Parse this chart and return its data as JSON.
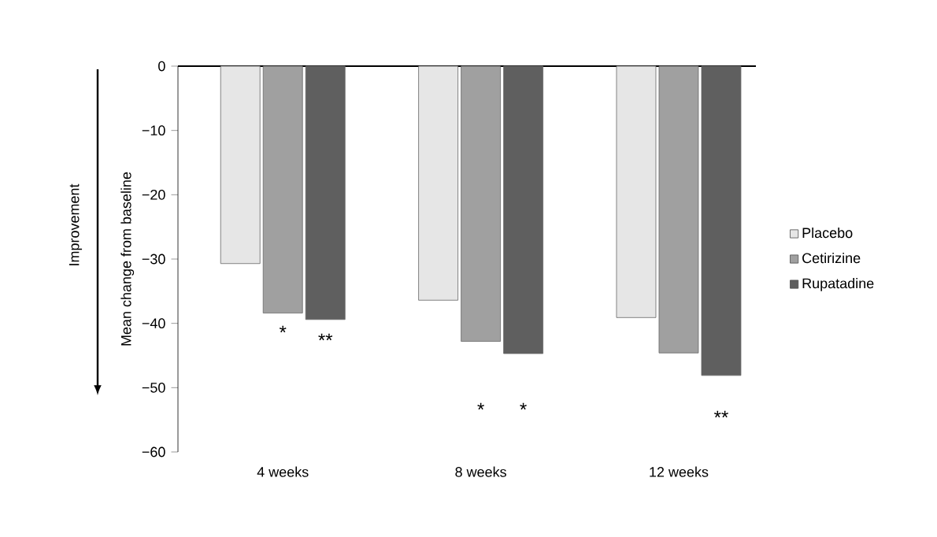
{
  "chart_data": {
    "type": "bar",
    "ylabel": "Mean change from baseline",
    "categories": [
      "4 weeks",
      "8 weeks",
      "12 weeks"
    ],
    "series": [
      {
        "name": "Placebo",
        "color": "#e6e6e6",
        "values": [
          -30.7,
          -36.4,
          -39.1
        ]
      },
      {
        "name": "Cetirizine",
        "color": "#a0a0a0",
        "values": [
          -38.4,
          -42.8,
          -44.6
        ]
      },
      {
        "name": "Rupatadine",
        "color": "#5f5f5f",
        "values": [
          -39.4,
          -44.7,
          -48.1
        ]
      }
    ],
    "ylim": [
      -60,
      0
    ],
    "yticks": [
      {
        "value": -60,
        "label": "−60"
      },
      {
        "value": -50,
        "label": "−50"
      },
      {
        "value": -40,
        "label": "−40"
      },
      {
        "value": -30,
        "label": "−30"
      },
      {
        "value": -20,
        "label": "−20"
      },
      {
        "value": -10,
        "label": "−10"
      },
      0
    ],
    "legend": "right",
    "annotations": [
      "Improvement",
      "*",
      "**",
      "*",
      "*",
      "**"
    ]
  }
}
